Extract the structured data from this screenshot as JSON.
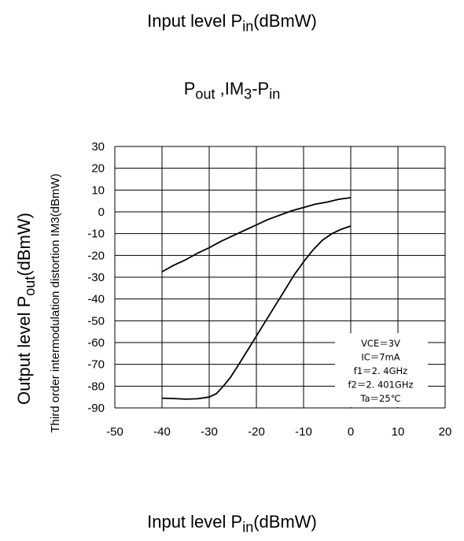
{
  "header": {
    "top_label_main": "Input level P",
    "top_label_sub": "in",
    "top_label_unit": "(dBmW)"
  },
  "footer": {
    "bottom_label_main": "Input level P",
    "bottom_label_sub": "in",
    "bottom_label_unit": "(dBmW)"
  },
  "chart_data": {
    "type": "line",
    "title_parts": {
      "p": "P",
      "out": "out",
      "sep": " ,IM",
      "three": "3",
      "dash": "-P",
      "in": "in"
    },
    "xlabel": "",
    "ylabel_outer_parts": {
      "main": "Output level P",
      "sub": "out",
      "unit": "(dBmW)"
    },
    "ylabel_inner": "Third order intermodulation distortion IM3(dBmW)",
    "xlim": [
      -50,
      20
    ],
    "ylim": [
      -90,
      30
    ],
    "x_ticks": [
      "-50",
      "-40",
      "-30",
      "-20",
      "-10",
      "0",
      "10",
      "20"
    ],
    "y_ticks": [
      "30",
      "20",
      "10",
      "0",
      "-10",
      "-20",
      "-30",
      "-40",
      "-50",
      "-60",
      "-70",
      "-80",
      "-90"
    ],
    "grid": true,
    "series": [
      {
        "x": [
          -40,
          -37.5,
          -35,
          -32.5,
          -30,
          -27.5,
          -25,
          -22.5,
          -20,
          -17.5,
          -15,
          -12.5,
          -10,
          -7.5,
          -5,
          -2.5,
          0
        ],
        "y": [
          -27.5,
          -24.5,
          -22,
          -19,
          -16.5,
          -13.5,
          -11,
          -8.5,
          -6,
          -3.5,
          -1.5,
          0.5,
          2,
          3.5,
          4.5,
          5.8,
          6.5
        ],
        "color": "#000000"
      },
      {
        "x": [
          -40,
          -37.5,
          -35,
          -32.5,
          -30,
          -28.5,
          -27,
          -25.5,
          -24,
          -22,
          -20,
          -18,
          -16,
          -14,
          -12,
          -10,
          -8,
          -6,
          -4,
          -2,
          0
        ],
        "y": [
          -85.5,
          -85.7,
          -86,
          -85.8,
          -85,
          -83.5,
          -80,
          -76,
          -71,
          -64,
          -57,
          -50,
          -43,
          -36,
          -29,
          -23,
          -17.5,
          -13,
          -10,
          -8,
          -6.5
        ],
        "color": "#000000"
      }
    ],
    "annotation": [
      "VCE＝3V",
      "IC＝7mA",
      "f1＝2. 4GHz",
      "f2＝2. 401GHz",
      "Ta＝25℃"
    ]
  }
}
